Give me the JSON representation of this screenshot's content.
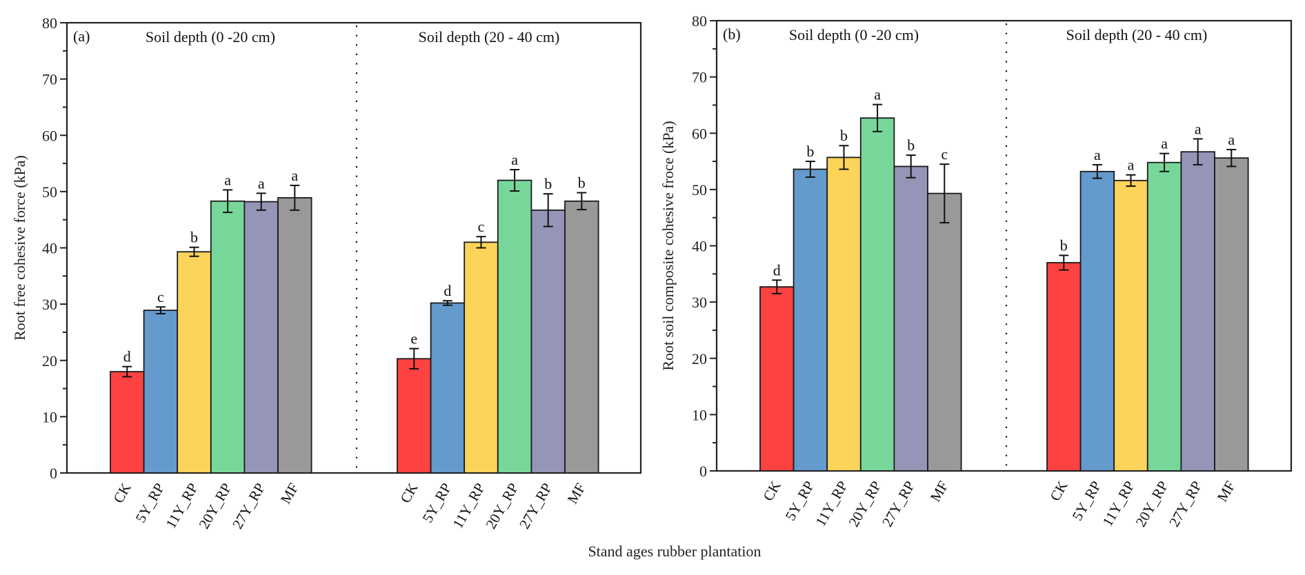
{
  "figure": {
    "xlabel": "Stand ages rubber plantation"
  },
  "chart_data": [
    {
      "type": "bar",
      "panel_label": "(a)",
      "ylabel": "Root free cohesive force (kPa)",
      "xlabel": "Stand ages rubber plantation",
      "ylim": [
        0,
        80
      ],
      "yticks": [
        0,
        10,
        20,
        30,
        40,
        50,
        60,
        70,
        80
      ],
      "grid": false,
      "groups": [
        {
          "title": "Soil depth (0 -20 cm)",
          "categories": [
            "CK",
            "5Y_RP",
            "11Y_RP",
            "20Y_RP",
            "27Y_RP",
            "MF"
          ],
          "values": [
            18.0,
            28.9,
            39.3,
            48.3,
            48.2,
            48.9
          ],
          "errors": [
            0.9,
            0.6,
            0.8,
            2.0,
            1.5,
            2.2
          ],
          "significance": [
            "d",
            "c",
            "b",
            "a",
            "a",
            "a"
          ]
        },
        {
          "title": "Soil depth (20 - 40 cm)",
          "categories": [
            "CK",
            "5Y_RP",
            "11Y_RP",
            "20Y_RP",
            "27Y_RP",
            "MF"
          ],
          "values": [
            20.3,
            30.2,
            41.0,
            52.0,
            46.7,
            48.3
          ],
          "errors": [
            1.8,
            0.4,
            1.0,
            1.9,
            2.9,
            1.5
          ],
          "significance": [
            "e",
            "d",
            "c",
            "a",
            "b",
            "b"
          ]
        }
      ]
    },
    {
      "type": "bar",
      "panel_label": "(b)",
      "ylabel": "Root soil composite cohesive froce (kPa)",
      "xlabel": "Stand ages rubber plantation",
      "ylim": [
        0,
        80
      ],
      "yticks": [
        0,
        10,
        20,
        30,
        40,
        50,
        60,
        70,
        80
      ],
      "grid": false,
      "groups": [
        {
          "title": "Soil depth (0 -20 cm)",
          "categories": [
            "CK",
            "5Y_RP",
            "11Y_RP",
            "20Y_RP",
            "27Y_RP",
            "MF"
          ],
          "values": [
            32.7,
            53.6,
            55.7,
            62.7,
            54.1,
            49.3
          ],
          "errors": [
            1.2,
            1.4,
            2.1,
            2.4,
            2.0,
            5.2
          ],
          "significance": [
            "d",
            "b",
            "b",
            "a",
            "b",
            "c"
          ]
        },
        {
          "title": "Soil depth (20 - 40 cm)",
          "categories": [
            "CK",
            "5Y_RP",
            "11Y_RP",
            "20Y_RP",
            "27Y_RP",
            "MF"
          ],
          "values": [
            37.0,
            53.2,
            51.6,
            54.8,
            56.7,
            55.6
          ],
          "errors": [
            1.3,
            1.2,
            1.0,
            1.6,
            2.3,
            1.5
          ],
          "significance": [
            "b",
            "a",
            "a",
            "a",
            "a",
            "a"
          ]
        }
      ]
    }
  ],
  "colors": {
    "CK": "#fe4242",
    "5Y_RP": "#659bcc",
    "11Y_RP": "#fdd45a",
    "20Y_RP": "#77d79b",
    "27Y_RP": "#9595b8",
    "MF": "#999999"
  }
}
